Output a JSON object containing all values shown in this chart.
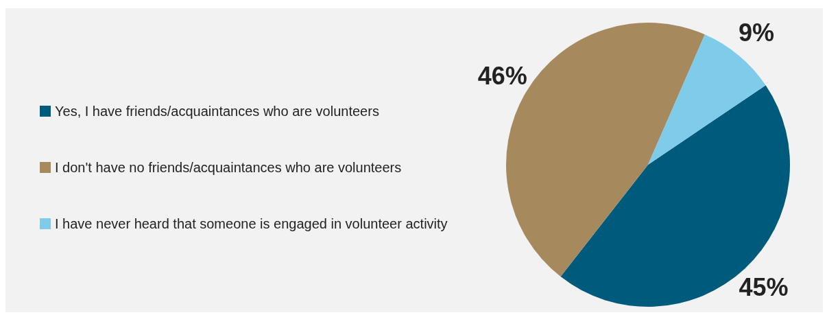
{
  "chart_data": {
    "type": "pie",
    "categories": [
      "Yes, I have friends/acquaintances who are volunteers",
      "I don't have no friends/acquaintances who are volunteers",
      "I have never heard that someone is engaged in volunteer activity"
    ],
    "values": [
      45,
      46,
      9
    ],
    "colors": [
      "#005a7c",
      "#a68a5e",
      "#7ecbea"
    ],
    "value_labels": [
      "45%",
      "46%",
      "9%"
    ],
    "legend": "left"
  }
}
